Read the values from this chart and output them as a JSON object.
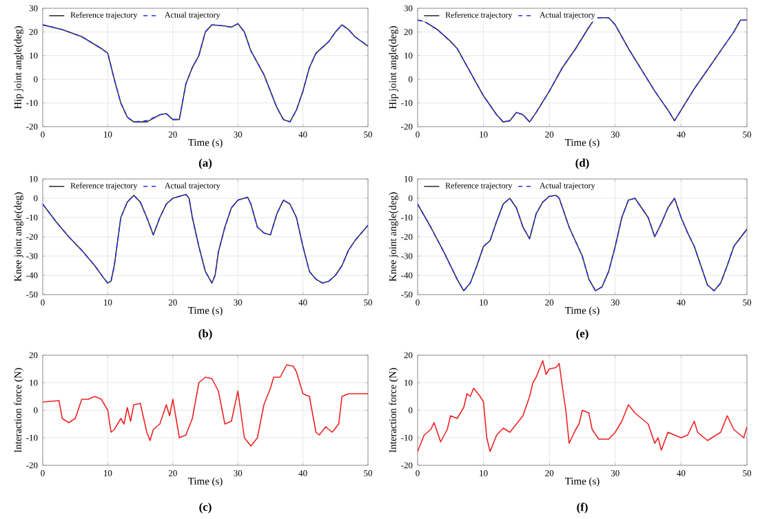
{
  "chart_data": [
    {
      "type": "line",
      "xlabel": "Time (s)",
      "ylabel": "Hip joint angle(deg)",
      "xlim": [
        0,
        50
      ],
      "ylim": [
        -20,
        30
      ],
      "xticks": [
        0,
        10,
        20,
        30,
        40,
        50
      ],
      "yticks": [
        -20,
        -10,
        0,
        10,
        20,
        30
      ],
      "grid": true,
      "legend": "top",
      "annotations": [
        "(a)"
      ],
      "series": [
        {
          "name": "Reference trajectory",
          "color": "#333333",
          "line_style": "solid",
          "x": [
            0,
            3,
            6,
            9,
            10,
            11,
            12,
            13,
            14,
            16,
            18,
            19,
            20,
            21,
            22,
            23,
            24,
            25,
            26,
            28,
            29,
            30,
            31,
            32,
            34,
            35,
            36,
            37,
            38,
            39,
            40,
            41,
            42,
            44,
            45,
            46,
            47,
            48,
            50
          ],
          "values": [
            23,
            21,
            18,
            13,
            11,
            0,
            -10,
            -16,
            -18,
            -18,
            -15,
            -14.5,
            -17,
            -17,
            -2,
            5,
            10,
            20,
            23,
            22.5,
            22,
            23.5,
            20,
            12,
            2,
            -5,
            -12,
            -17,
            -18,
            -13,
            -5,
            5,
            11,
            16,
            20,
            23,
            21,
            18,
            14
          ]
        },
        {
          "name": "Actual trajectory",
          "color": "#2a2aff",
          "line_style": "dashed",
          "x": [
            0,
            3,
            6,
            9,
            10,
            11,
            12,
            13,
            14,
            16,
            18,
            19,
            20,
            21,
            22,
            23,
            24,
            25,
            26,
            28,
            29,
            30,
            31,
            32,
            34,
            35,
            36,
            37,
            38,
            39,
            40,
            41,
            42,
            44,
            45,
            46,
            47,
            48,
            50
          ],
          "values": [
            23,
            21,
            18,
            13,
            11,
            0,
            -10,
            -16,
            -18,
            -17.5,
            -15,
            -14.5,
            -17,
            -17,
            -2,
            5,
            10,
            20,
            23,
            22.5,
            22,
            23.5,
            20,
            12,
            2,
            -5,
            -12,
            -17,
            -18,
            -13,
            -5,
            5,
            11,
            16,
            20,
            23,
            21,
            18,
            14
          ]
        }
      ]
    },
    {
      "type": "line",
      "xlabel": "Time (s)",
      "ylabel": "Hip joint angle(deg)",
      "xlim": [
        0,
        50
      ],
      "ylim": [
        -20,
        30
      ],
      "xticks": [
        0,
        10,
        20,
        30,
        40,
        50
      ],
      "yticks": [
        -20,
        -10,
        0,
        10,
        20,
        30
      ],
      "grid": true,
      "legend": "top",
      "annotations": [
        "(d)"
      ],
      "series": [
        {
          "name": "Reference trajectory",
          "color": "#333333",
          "line_style": "solid",
          "x": [
            0,
            1,
            3,
            5,
            6,
            8,
            10,
            12,
            13,
            14,
            15,
            16,
            17,
            18,
            20,
            22,
            24,
            26,
            27,
            28,
            29,
            30,
            32,
            34,
            36,
            38,
            39,
            40,
            42,
            44,
            46,
            48,
            49,
            50
          ],
          "values": [
            25,
            24.5,
            21,
            16,
            13,
            3,
            -7,
            -15,
            -18,
            -17.5,
            -14,
            -15,
            -18,
            -14,
            -5,
            5,
            13,
            22,
            26,
            26,
            26,
            23,
            13,
            4,
            -5,
            -13,
            -17.5,
            -13,
            -4,
            4,
            12,
            20,
            25,
            25
          ]
        },
        {
          "name": "Actual trajectory",
          "color": "#2a2aff",
          "line_style": "dashed",
          "x": [
            0,
            1,
            3,
            5,
            6,
            8,
            10,
            12,
            13,
            14,
            15,
            16,
            17,
            18,
            20,
            22,
            24,
            26,
            27,
            28,
            29,
            30,
            32,
            34,
            36,
            38,
            39,
            40,
            42,
            44,
            46,
            48,
            49,
            50
          ],
          "values": [
            25,
            24.5,
            21,
            16,
            13,
            3,
            -7,
            -15,
            -18,
            -17.5,
            -14,
            -15,
            -18,
            -14,
            -5,
            5,
            13,
            22,
            26,
            26,
            26,
            23,
            13,
            4,
            -5,
            -13,
            -17.5,
            -13,
            -4,
            4,
            12,
            20,
            25,
            25
          ]
        }
      ]
    },
    {
      "type": "line",
      "xlabel": "Time (s)",
      "ylabel": "Knee joint angle(deg)",
      "xlim": [
        0,
        50
      ],
      "ylim": [
        -50,
        10
      ],
      "xticks": [
        0,
        10,
        20,
        30,
        40,
        50
      ],
      "yticks": [
        -50,
        -40,
        -30,
        -20,
        -10,
        0,
        10
      ],
      "grid": true,
      "legend": "top",
      "annotations": [
        "(b)"
      ],
      "series": [
        {
          "name": "Reference trajectory",
          "color": "#333333",
          "line_style": "solid",
          "x": [
            0,
            2,
            4,
            6,
            8,
            9.5,
            10,
            10.5,
            11,
            12,
            13,
            14,
            15,
            16,
            17,
            18,
            19,
            20,
            22,
            22.5,
            23,
            24,
            25,
            26,
            26.5,
            27,
            28,
            29,
            30,
            31.5,
            32,
            33,
            34,
            35,
            36,
            37,
            38,
            39,
            40,
            41,
            42,
            43,
            44,
            45,
            46,
            47,
            48,
            50
          ],
          "values": [
            -3,
            -12,
            -20,
            -27,
            -35,
            -42,
            -44,
            -43,
            -35,
            -10,
            -2,
            1.5,
            -2,
            -10,
            -19,
            -10,
            -3,
            0,
            2,
            0,
            -10,
            -25,
            -38,
            -44,
            -40,
            -28,
            -15,
            -5,
            -1,
            0.5,
            -3,
            -15,
            -18,
            -19,
            -8,
            -1,
            -3,
            -10,
            -25,
            -38,
            -42,
            -44,
            -43,
            -40,
            -35,
            -27,
            -22,
            -14
          ]
        },
        {
          "name": "Actual trajectory",
          "color": "#2a2aff",
          "line_style": "dashed",
          "x": [
            0,
            2,
            4,
            6,
            8,
            9.5,
            10,
            10.5,
            11,
            12,
            13,
            14,
            15,
            16,
            17,
            18,
            19,
            20,
            22,
            22.5,
            23,
            24,
            25,
            26,
            26.5,
            27,
            28,
            29,
            30,
            31.5,
            32,
            33,
            34,
            35,
            36,
            37,
            38,
            39,
            40,
            41,
            42,
            43,
            44,
            45,
            46,
            47,
            48,
            50
          ],
          "values": [
            -3,
            -12,
            -20,
            -27,
            -35,
            -42,
            -44,
            -43,
            -35,
            -10,
            -2,
            1.5,
            -2,
            -10,
            -19,
            -10,
            -3,
            0,
            2,
            0,
            -10,
            -25,
            -38,
            -44,
            -40,
            -28,
            -15,
            -5,
            -1,
            0.5,
            -3,
            -15,
            -18,
            -19,
            -8,
            -1,
            -3,
            -10,
            -25,
            -38,
            -42,
            -44,
            -43,
            -40,
            -35,
            -27,
            -22,
            -14
          ]
        }
      ]
    },
    {
      "type": "line",
      "xlabel": "Time (s)",
      "ylabel": "Knee joint angle(deg)",
      "xlim": [
        0,
        50
      ],
      "ylim": [
        -50,
        10
      ],
      "xticks": [
        0,
        10,
        20,
        30,
        40,
        50
      ],
      "yticks": [
        -50,
        -40,
        -30,
        -20,
        -10,
        0,
        10
      ],
      "grid": true,
      "legend": "top",
      "annotations": [
        "(e)"
      ],
      "series": [
        {
          "name": "Reference trajectory",
          "color": "#333333",
          "line_style": "solid",
          "x": [
            0,
            2,
            4,
            6,
            7,
            8,
            9,
            10,
            11,
            12,
            13,
            14,
            15,
            16,
            17,
            18,
            19,
            20,
            21,
            21.5,
            23,
            25,
            26,
            27,
            28,
            29,
            30,
            31,
            32,
            33,
            34,
            35,
            36,
            37,
            38,
            39,
            40,
            41,
            42,
            43,
            44,
            45,
            46,
            47,
            48,
            50
          ],
          "values": [
            -3,
            -15,
            -28,
            -42,
            -48,
            -44,
            -35,
            -25,
            -22,
            -12,
            -3,
            0,
            -5,
            -15,
            -21,
            -8,
            -2,
            1,
            1.5,
            0,
            -15,
            -30,
            -42,
            -48,
            -46,
            -38,
            -25,
            -10,
            -1,
            0,
            -5,
            -10,
            -20,
            -13,
            -5,
            0,
            -10,
            -18,
            -25,
            -35,
            -45,
            -48,
            -44,
            -35,
            -25,
            -16
          ]
        },
        {
          "name": "Actual trajectory",
          "color": "#2a2aff",
          "line_style": "dashed",
          "x": [
            0,
            2,
            4,
            6,
            7,
            8,
            9,
            10,
            11,
            12,
            13,
            14,
            15,
            16,
            17,
            18,
            19,
            20,
            21,
            21.5,
            23,
            25,
            26,
            27,
            28,
            29,
            30,
            31,
            32,
            33,
            34,
            35,
            36,
            37,
            38,
            39,
            40,
            41,
            42,
            43,
            44,
            45,
            46,
            47,
            48,
            50
          ],
          "values": [
            -3,
            -15,
            -28,
            -42,
            -48,
            -44,
            -35,
            -25,
            -22,
            -12,
            -3,
            0,
            -5,
            -15,
            -21,
            -8,
            -2,
            1,
            1.5,
            0,
            -15,
            -30,
            -42,
            -48,
            -46,
            -38,
            -25,
            -10,
            -1,
            0,
            -5,
            -10,
            -20,
            -13,
            -5,
            0,
            -10,
            -18,
            -25,
            -35,
            -45,
            -48,
            -44,
            -35,
            -25,
            -16
          ]
        }
      ]
    },
    {
      "type": "line",
      "xlabel": "Time (s)",
      "ylabel": "Interaction force (N)",
      "xlim": [
        0,
        50
      ],
      "ylim": [
        -20,
        20
      ],
      "xticks": [
        0,
        10,
        20,
        30,
        40,
        50
      ],
      "yticks": [
        -20,
        -10,
        0,
        10,
        20
      ],
      "grid": true,
      "annotations": [
        "(c)"
      ],
      "series": [
        {
          "color": "#ee2222",
          "line_style": "solid",
          "x": [
            0,
            2.5,
            3,
            4,
            5,
            6,
            7,
            8,
            9,
            10,
            10.5,
            11,
            12,
            12.5,
            13,
            13.5,
            14,
            15,
            16,
            16.5,
            17,
            18,
            19,
            19.5,
            20,
            20.5,
            21,
            22,
            23,
            24,
            25,
            26,
            27,
            28,
            29,
            30,
            31,
            32,
            33,
            34,
            35,
            35.5,
            36.5,
            37.5,
            38.5,
            39,
            40,
            41,
            42,
            42.5,
            43.5,
            44.5,
            45.5,
            46,
            47,
            50
          ],
          "values": [
            3,
            3.5,
            -3,
            -4.5,
            -3,
            4,
            4,
            5,
            4,
            0,
            -8,
            -7,
            -3,
            -5,
            1,
            -4,
            2,
            2.5,
            -8,
            -11,
            -7,
            -5,
            2,
            -2,
            4,
            -3,
            -10,
            -9,
            -3,
            10,
            12,
            11.5,
            7,
            -5,
            -4,
            7,
            -10,
            -13,
            -10,
            2,
            8,
            12,
            12,
            16.5,
            16,
            14,
            6,
            5,
            -8,
            -9,
            -6,
            -8,
            -5,
            5,
            6,
            6
          ]
        }
      ]
    },
    {
      "type": "line",
      "xlabel": "Time (s)",
      "ylabel": "Interaction force (N)",
      "xlim": [
        0,
        50
      ],
      "ylim": [
        -20,
        20
      ],
      "xticks": [
        0,
        10,
        20,
        30,
        40,
        50
      ],
      "yticks": [
        -20,
        -10,
        0,
        10,
        20
      ],
      "grid": true,
      "annotations": [
        "(f)"
      ],
      "series": [
        {
          "color": "#ee2222",
          "line_style": "solid",
          "x": [
            0,
            1,
            2,
            2.5,
            3,
            3.5,
            4.5,
            5,
            6,
            7,
            7.5,
            8,
            8.5,
            9.5,
            10,
            10.5,
            11,
            12,
            13,
            14,
            15,
            16,
            17,
            17.5,
            18,
            19,
            19.5,
            20,
            21,
            21.5,
            22,
            22.5,
            23,
            24,
            24.5,
            25,
            26,
            26.5,
            27.5,
            29,
            30,
            31,
            32,
            33,
            35,
            36,
            36.5,
            37,
            38,
            40,
            41,
            42,
            42.5,
            44,
            46,
            47,
            48,
            49,
            49.5,
            50
          ],
          "values": [
            -15,
            -9,
            -7,
            -4.5,
            -8,
            -11.5,
            -7,
            -2,
            -3,
            1,
            6,
            5,
            8,
            5,
            3,
            -10,
            -15,
            -9,
            -6.5,
            -8,
            -5,
            -2,
            5,
            10,
            12,
            18,
            13,
            15,
            15.5,
            17,
            8,
            0,
            -12,
            -7,
            -5,
            0,
            -1,
            -7,
            -10.5,
            -10.5,
            -8,
            -4,
            2,
            -1,
            -5,
            -12,
            -10,
            -14.5,
            -8,
            -10,
            -9,
            -4,
            -8,
            -11,
            -8,
            -2,
            -7,
            -9,
            -10,
            -6
          ]
        }
      ]
    }
  ]
}
